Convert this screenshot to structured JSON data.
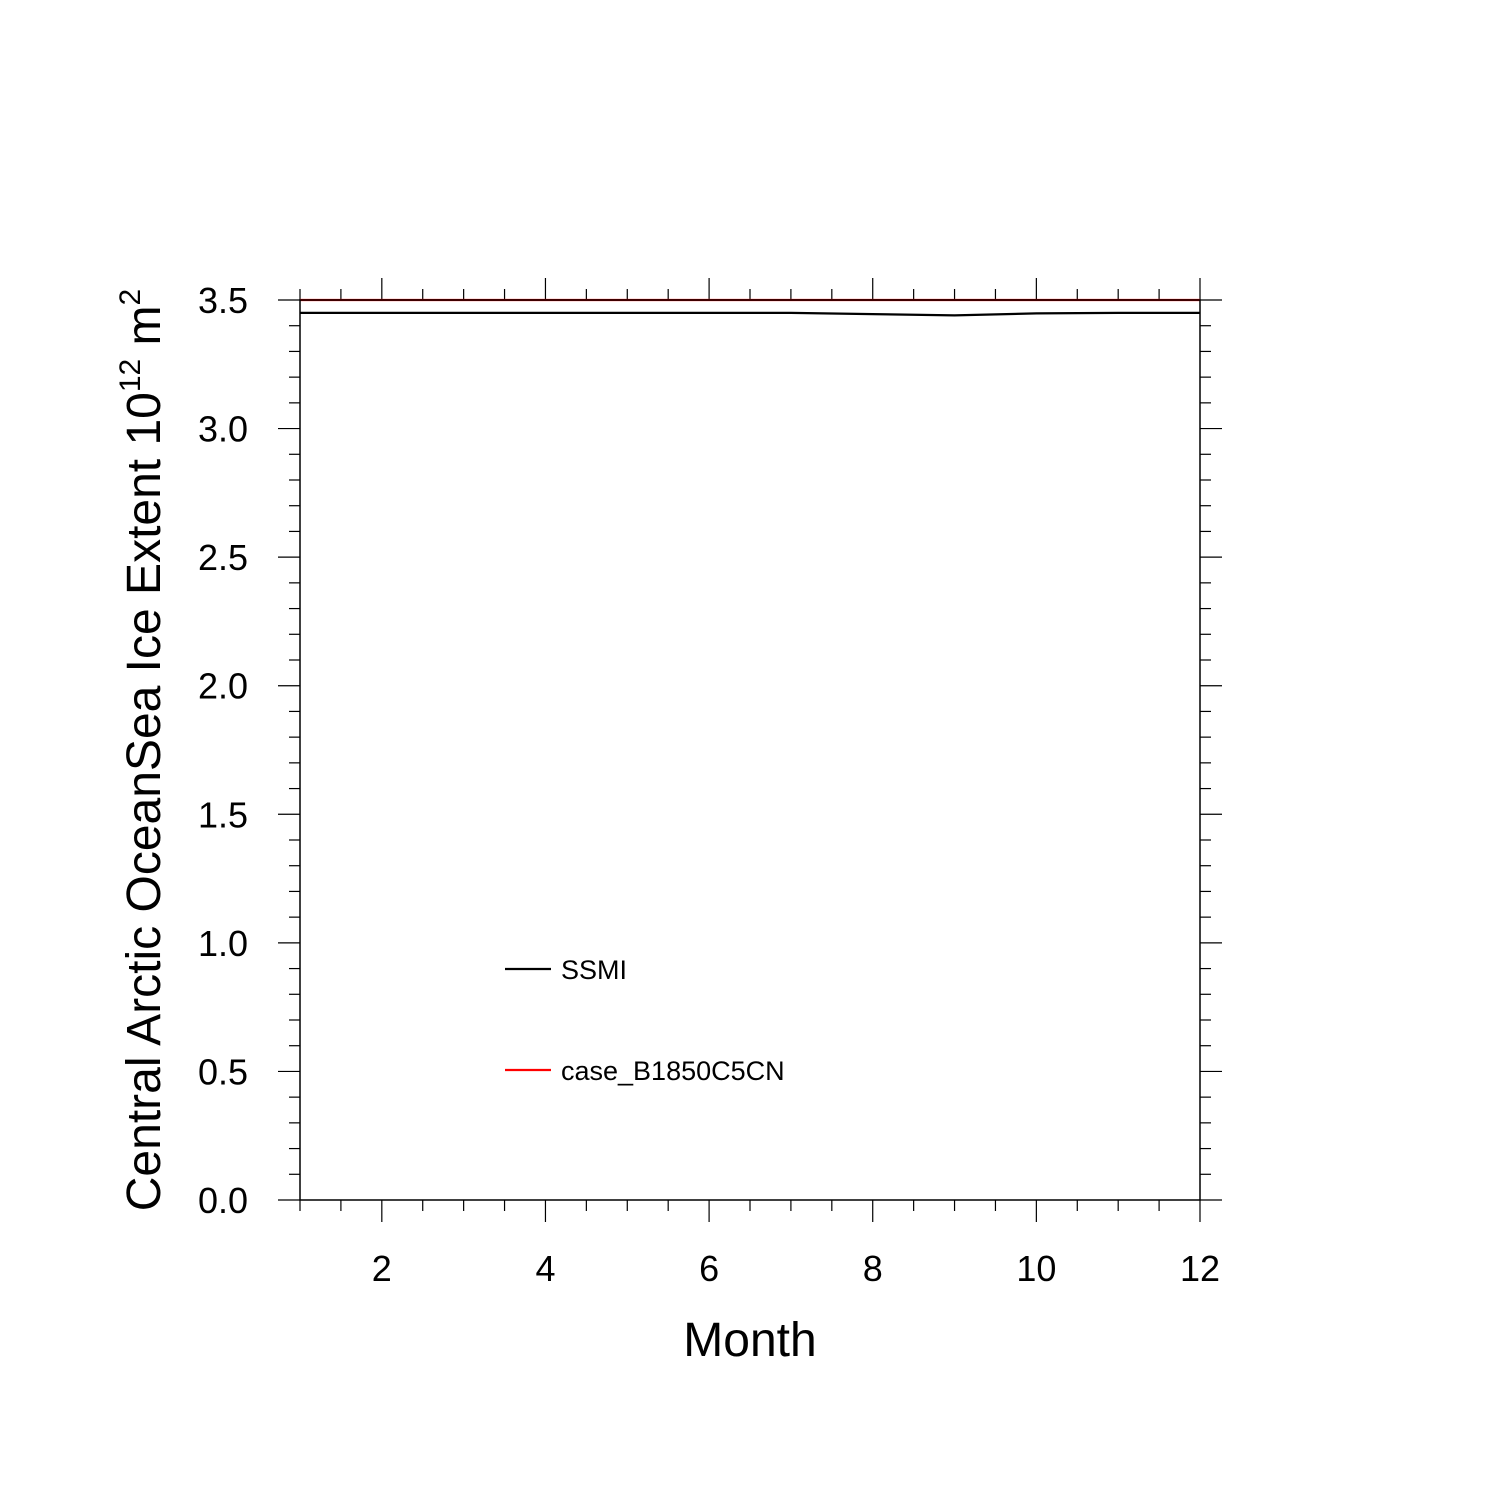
{
  "chart_data": {
    "type": "line",
    "xlabel": "Month",
    "ylabel_main": "Central Arctic OceanSea Ice Extent 10",
    "ylabel_exp": "12",
    "ylabel_unit": " m",
    "ylabel_unit_exp": "2",
    "xlim": [
      1,
      12
    ],
    "ylim": [
      0.0,
      3.5
    ],
    "x_ticks": [
      2,
      4,
      6,
      8,
      10,
      12
    ],
    "x_tick_labels": [
      "2",
      "4",
      "6",
      "8",
      "10",
      "12"
    ],
    "y_ticks": [
      0.0,
      0.5,
      1.0,
      1.5,
      2.0,
      2.5,
      3.0,
      3.5
    ],
    "y_tick_labels": [
      "0.0",
      "0.5",
      "1.0",
      "1.5",
      "2.0",
      "2.5",
      "3.0",
      "3.5"
    ],
    "grid": false,
    "legend_position": "lower-left",
    "x": [
      1,
      2,
      3,
      4,
      5,
      6,
      7,
      8,
      9,
      10,
      11,
      12
    ],
    "series": [
      {
        "name": "SSMI",
        "color": "#000000",
        "values": [
          3.45,
          3.45,
          3.45,
          3.45,
          3.45,
          3.45,
          3.45,
          3.445,
          3.44,
          3.448,
          3.45,
          3.45
        ]
      },
      {
        "name": "case_B1850C5CN",
        "color": "#ff0000",
        "values": [
          3.5,
          3.5,
          3.5,
          3.5,
          3.5,
          3.5,
          3.5,
          3.5,
          3.5,
          3.5,
          3.5,
          3.5
        ]
      }
    ]
  }
}
